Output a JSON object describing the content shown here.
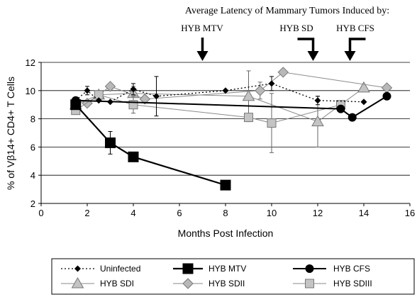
{
  "chart_data": {
    "type": "line",
    "title": "Average Latency of Mammary Tumors Induced by:",
    "annotations": [
      "HYB MTV",
      "HYB SD",
      "HYB CFS"
    ],
    "annotation_x": [
      7.0,
      11.8,
      13.4
    ],
    "xlabel": "Months Post Infection",
    "ylabel": "% of Vβ14+ CD4+ T Cells",
    "xlim": [
      0,
      16
    ],
    "ylim": [
      2,
      12
    ],
    "xticks": [
      "0",
      "2",
      "4",
      "6",
      "8",
      "10",
      "12",
      "14",
      "16"
    ],
    "yticks": [
      "2",
      "4",
      "6",
      "8",
      "10",
      "12"
    ],
    "grid": "horizontal",
    "legend_position": "bottom",
    "series": [
      {
        "name": "Uninfected",
        "marker": "diamond-small",
        "color": "#000000",
        "line": "dotted",
        "x": [
          1.5,
          2,
          2.5,
          3,
          4,
          5,
          8,
          10,
          12,
          14
        ],
        "y": [
          9.3,
          10.0,
          9.3,
          9.2,
          10.1,
          9.6,
          10.0,
          10.5,
          9.3,
          9.2
        ],
        "err": [
          0,
          0.3,
          0,
          0,
          0.4,
          1.4,
          0,
          0.5,
          0.3,
          0
        ]
      },
      {
        "name": "HYB MTV",
        "marker": "square-large",
        "color": "#000000",
        "line": "solid-thick",
        "x": [
          1.5,
          3,
          4,
          8
        ],
        "y": [
          9.0,
          6.3,
          5.3,
          3.3
        ],
        "err": [
          0,
          0.8,
          0,
          0
        ]
      },
      {
        "name": "HYB CFS",
        "marker": "circle",
        "color": "#000000",
        "line": "solid",
        "x": [
          1.5,
          13,
          13.5,
          15
        ],
        "y": [
          9.3,
          8.7,
          8.1,
          9.6
        ],
        "err": [
          0,
          0,
          0,
          0
        ]
      },
      {
        "name": "HYB SDI",
        "marker": "triangle",
        "color": "#a0a0a0",
        "line": "thin",
        "x": [
          1.5,
          2.5,
          4,
          9,
          12,
          14
        ],
        "y": [
          9.0,
          9.7,
          9.8,
          9.6,
          7.8,
          10.2
        ],
        "err": [
          0,
          0,
          0.5,
          1.8,
          1.8,
          0
        ]
      },
      {
        "name": "HYB SDII",
        "marker": "diamond",
        "color": "#a0a0a0",
        "line": "thin",
        "x": [
          2,
          3,
          4.5,
          9.5,
          10.5,
          15
        ],
        "y": [
          9.1,
          10.3,
          9.4,
          10.0,
          11.3,
          10.2
        ],
        "err": [
          0,
          0,
          0,
          0.6,
          0,
          0
        ]
      },
      {
        "name": "HYB SDIII",
        "marker": "square",
        "color": "#a0a0a0",
        "line": "thin",
        "x": [
          1.5,
          2.5,
          4,
          9,
          10,
          13
        ],
        "y": [
          8.6,
          9.7,
          9.0,
          8.1,
          7.7,
          9.0
        ],
        "err": [
          0,
          0,
          0.6,
          0,
          2.1,
          0
        ]
      }
    ]
  }
}
